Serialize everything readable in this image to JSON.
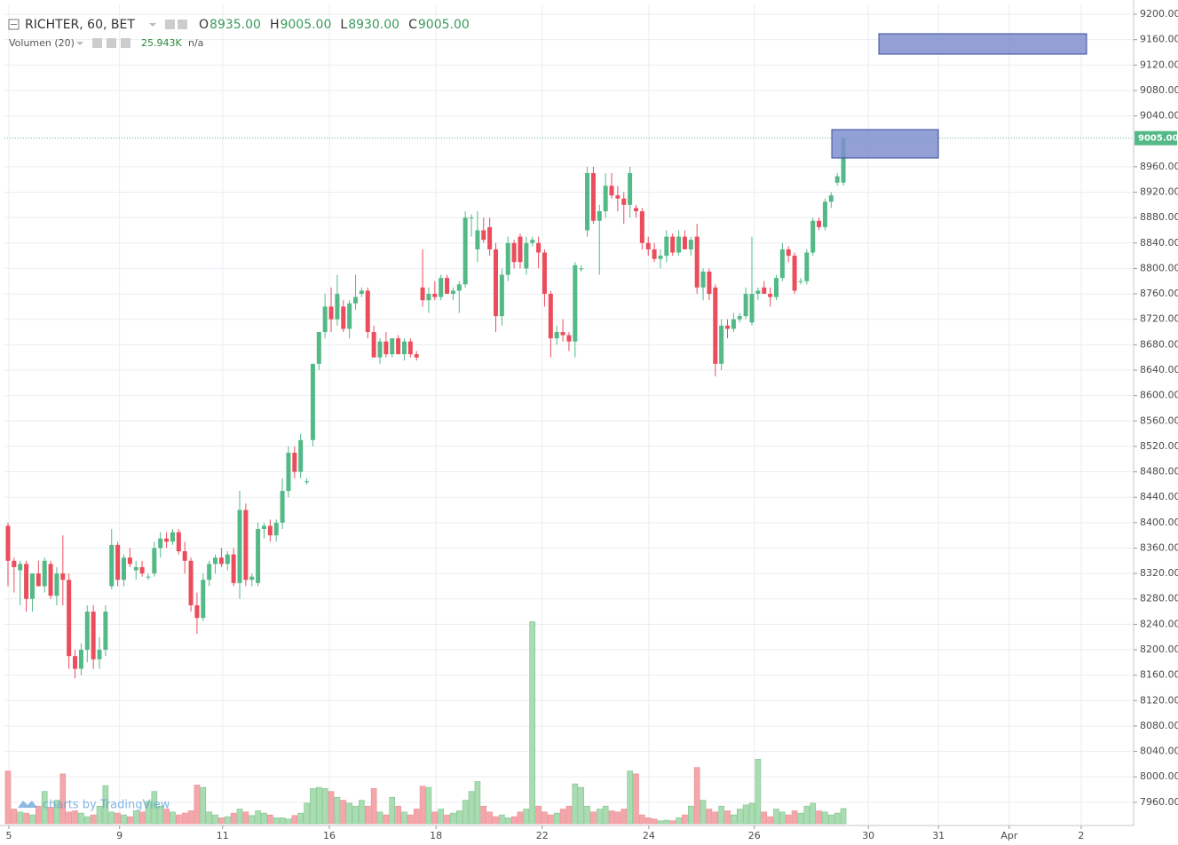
{
  "chart_data": {
    "type": "candlestick",
    "title": "RICHTER, 60, BET",
    "ohlc_labels": [
      {
        "name": "O",
        "value": "8935.00"
      },
      {
        "name": "H",
        "value": "9005.00"
      },
      {
        "name": "L",
        "value": "8930.00"
      },
      {
        "name": "C",
        "value": "9005.00"
      }
    ],
    "up_color": "#53b987",
    "down_color": "#eb4d5c",
    "open": [
      8395,
      8340,
      8325,
      8335,
      8280,
      8320,
      8300,
      8335,
      8285,
      8320,
      8310,
      8190,
      8170,
      8200,
      8260,
      8185,
      8200,
      8300,
      8365,
      8310,
      8345,
      8325,
      8330,
      8315,
      8320,
      8360,
      8375,
      8370,
      8385,
      8355,
      8340,
      8270,
      8250,
      8310,
      8335,
      8345,
      8335,
      8350,
      8305,
      8420,
      8310,
      8305,
      8390,
      8395,
      8380,
      8400,
      8450,
      8510,
      8480,
      8465,
      8530,
      8650,
      8700,
      8740,
      8720,
      8740,
      8705,
      8745,
      8760,
      8765,
      8700,
      8660,
      8685,
      8665,
      8690,
      8665,
      8685,
      8665,
      8770,
      8750,
      8760,
      8755,
      8785,
      8760,
      8765,
      8775,
      8880,
      8830,
      8860,
      8865,
      8830,
      8725,
      8790,
      8840,
      8850,
      8800,
      8840,
      8840,
      8825,
      8760,
      8690,
      8700,
      8695,
      8685,
      8800,
      8860,
      8950,
      8875,
      8890,
      8930,
      8915,
      8910,
      8900,
      8895,
      8890,
      8840,
      8830,
      8815,
      8820,
      8850,
      8825,
      8850,
      8830,
      8850,
      8770,
      8795,
      8770,
      8650,
      8710,
      8705,
      8720,
      8725,
      8715,
      8760,
      8770,
      8760,
      8755,
      8785,
      8830,
      8820,
      8780,
      8780,
      8825,
      8875,
      8865,
      8905,
      8935,
      8935
    ],
    "high": [
      8400,
      8345,
      8340,
      8340,
      8320,
      8340,
      8345,
      8340,
      8330,
      8380,
      8320,
      8200,
      8210,
      8270,
      8270,
      8220,
      8270,
      8390,
      8370,
      8350,
      8360,
      8340,
      8340,
      8320,
      8370,
      8385,
      8385,
      8390,
      8390,
      8370,
      8345,
      8290,
      8320,
      8340,
      8350,
      8360,
      8355,
      8360,
      8450,
      8430,
      8320,
      8400,
      8400,
      8405,
      8405,
      8470,
      8520,
      8520,
      8540,
      8470,
      8650,
      8700,
      8760,
      8770,
      8790,
      8750,
      8750,
      8790,
      8770,
      8770,
      8710,
      8690,
      8700,
      8690,
      8695,
      8690,
      8690,
      8670,
      8830,
      8770,
      8780,
      8790,
      8790,
      8770,
      8780,
      8890,
      8885,
      8890,
      8880,
      8880,
      8840,
      8800,
      8850,
      8845,
      8855,
      8850,
      8850,
      8850,
      8830,
      8765,
      8710,
      8720,
      8700,
      8810,
      8805,
      8960,
      8960,
      8900,
      8950,
      8950,
      8930,
      8920,
      8960,
      8900,
      8895,
      8850,
      8840,
      8830,
      8860,
      8855,
      8860,
      8860,
      8850,
      8870,
      8800,
      8800,
      8775,
      8720,
      8720,
      8730,
      8730,
      8770,
      8850,
      8770,
      8780,
      8770,
      8790,
      8840,
      8835,
      8825,
      8785,
      8830,
      8880,
      8880,
      8910,
      8920,
      8950,
      9005
    ],
    "low": [
      8300,
      8290,
      8270,
      8260,
      8260,
      8300,
      8290,
      8280,
      8270,
      8270,
      8170,
      8155,
      8160,
      8180,
      8170,
      8170,
      8190,
      8295,
      8300,
      8300,
      8330,
      8310,
      8315,
      8310,
      8315,
      8345,
      8360,
      8365,
      8350,
      8320,
      8260,
      8225,
      8245,
      8300,
      8320,
      8330,
      8325,
      8300,
      8280,
      8300,
      8300,
      8300,
      8375,
      8370,
      8370,
      8390,
      8440,
      8470,
      8470,
      8460,
      8520,
      8640,
      8690,
      8700,
      8710,
      8700,
      8690,
      8735,
      8755,
      8690,
      8660,
      8650,
      8660,
      8660,
      8665,
      8655,
      8660,
      8655,
      8740,
      8730,
      8750,
      8750,
      8760,
      8750,
      8730,
      8770,
      8850,
      8810,
      8840,
      8820,
      8700,
      8710,
      8780,
      8800,
      8800,
      8790,
      8835,
      8800,
      8740,
      8660,
      8680,
      8685,
      8670,
      8660,
      8795,
      8850,
      8870,
      8790,
      8880,
      8910,
      8890,
      8870,
      8880,
      8880,
      8830,
      8820,
      8810,
      8800,
      8810,
      8820,
      8820,
      8830,
      8820,
      8760,
      8750,
      8750,
      8630,
      8640,
      8690,
      8700,
      8715,
      8720,
      8710,
      8750,
      8760,
      8740,
      8750,
      8780,
      8810,
      8760,
      8775,
      8775,
      8820,
      8860,
      8860,
      8895,
      8930,
      8930
    ],
    "close": [
      8340,
      8330,
      8335,
      8280,
      8320,
      8300,
      8340,
      8285,
      8320,
      8310,
      8190,
      8170,
      8200,
      8260,
      8185,
      8200,
      8260,
      8365,
      8310,
      8345,
      8335,
      8330,
      8320,
      8315,
      8360,
      8375,
      8370,
      8385,
      8355,
      8340,
      8270,
      8250,
      8310,
      8335,
      8345,
      8335,
      8350,
      8305,
      8420,
      8310,
      8315,
      8390,
      8395,
      8380,
      8400,
      8450,
      8510,
      8480,
      8530,
      8465,
      8650,
      8700,
      8740,
      8720,
      8760,
      8705,
      8745,
      8755,
      8765,
      8700,
      8660,
      8685,
      8665,
      8690,
      8665,
      8685,
      8665,
      8660,
      8750,
      8760,
      8755,
      8785,
      8760,
      8765,
      8775,
      8880,
      8880,
      8860,
      8845,
      8830,
      8725,
      8790,
      8840,
      8810,
      8810,
      8840,
      8845,
      8825,
      8760,
      8690,
      8700,
      8695,
      8685,
      8805,
      8800,
      8950,
      8875,
      8890,
      8930,
      8915,
      8910,
      8900,
      8950,
      8890,
      8840,
      8830,
      8815,
      8820,
      8850,
      8825,
      8850,
      8830,
      8845,
      8770,
      8795,
      8760,
      8650,
      8710,
      8705,
      8720,
      8725,
      8760,
      8760,
      8765,
      8760,
      8755,
      8785,
      8830,
      8820,
      8765,
      8780,
      8825,
      8875,
      8865,
      8905,
      8915,
      8945,
      9005
    ],
    "volume": {
      "name": "Volumen (20)",
      "last_label": "25.943K",
      "status": "n/a",
      "values": [
        90,
        25,
        20,
        18,
        15,
        30,
        55,
        28,
        40,
        85,
        20,
        22,
        18,
        12,
        15,
        30,
        65,
        20,
        18,
        15,
        12,
        22,
        20,
        38,
        55,
        30,
        25,
        20,
        15,
        18,
        22,
        66,
        62,
        20,
        15,
        10,
        12,
        18,
        25,
        20,
        14,
        22,
        18,
        15,
        10,
        10,
        8,
        14,
        18,
        35,
        60,
        62,
        60,
        55,
        45,
        40,
        35,
        30,
        40,
        30,
        60,
        20,
        15,
        45,
        30,
        20,
        15,
        25,
        64,
        62,
        20,
        25,
        15,
        18,
        22,
        40,
        55,
        72,
        30,
        20,
        12,
        15,
        10,
        12,
        20,
        25,
        345,
        30,
        20,
        15,
        18,
        25,
        30,
        68,
        62,
        30,
        20,
        25,
        30,
        22,
        20,
        25,
        90,
        85,
        15,
        10,
        8,
        5,
        6,
        5,
        10,
        15,
        30,
        96,
        40,
        25,
        20,
        30,
        22,
        15,
        25,
        32,
        35,
        110,
        20,
        12,
        25,
        20,
        15,
        22,
        18,
        30,
        35,
        22,
        20,
        15,
        18,
        25.943
      ]
    },
    "last_price": {
      "value": 9005,
      "label": "9005.00"
    },
    "xlim": [
      -0.58,
      184.6
    ],
    "xticks": [
      {
        "value": 0.15,
        "label": "5"
      },
      {
        "value": 18.3,
        "label": "9"
      },
      {
        "value": 35.2,
        "label": "11"
      },
      {
        "value": 52.7,
        "label": "16"
      },
      {
        "value": 70.2,
        "label": "18"
      },
      {
        "value": 87.6,
        "label": "22"
      },
      {
        "value": 105.1,
        "label": "24"
      },
      {
        "value": 122.4,
        "label": "26"
      },
      {
        "value": 141.1,
        "label": "30"
      },
      {
        "value": 152.6,
        "label": "31"
      },
      {
        "value": 164.2,
        "label": "Apr"
      },
      {
        "value": 176.0,
        "label": "2"
      }
    ],
    "ylim": [
      7926.3,
      9215.4
    ],
    "yticks": [
      {
        "value": 9200,
        "label": "9200.00"
      },
      {
        "value": 9160,
        "label": "9160.00"
      },
      {
        "value": 9120,
        "label": "9120.00"
      },
      {
        "value": 9080,
        "label": "9080.00"
      },
      {
        "value": 9040,
        "label": "9040.00"
      },
      {
        "value": 8960,
        "label": "8960.00"
      },
      {
        "value": 8920,
        "label": "8920.00"
      },
      {
        "value": 8880,
        "label": "8880.00"
      },
      {
        "value": 8840,
        "label": "8840.00"
      },
      {
        "value": 8800,
        "label": "8800.00"
      },
      {
        "value": 8760,
        "label": "8760.00"
      },
      {
        "value": 8720,
        "label": "8720.00"
      },
      {
        "value": 8680,
        "label": "8680.00"
      },
      {
        "value": 8640,
        "label": "8640.00"
      },
      {
        "value": 8600,
        "label": "8600.00"
      },
      {
        "value": 8560,
        "label": "8560.00"
      },
      {
        "value": 8520,
        "label": "8520.00"
      },
      {
        "value": 8480,
        "label": "8480.00"
      },
      {
        "value": 8440,
        "label": "8440.00"
      },
      {
        "value": 8400,
        "label": "8400.00"
      },
      {
        "value": 8360,
        "label": "8360.00"
      },
      {
        "value": 8320,
        "label": "8320.00"
      },
      {
        "value": 8280,
        "label": "8280.00"
      },
      {
        "value": 8240,
        "label": "8240.00"
      },
      {
        "value": 8200,
        "label": "8200.00"
      },
      {
        "value": 8160,
        "label": "8160.00"
      },
      {
        "value": 8120,
        "label": "8120.00"
      },
      {
        "value": 8080,
        "label": "8080.00"
      },
      {
        "value": 8040,
        "label": "8040.00"
      },
      {
        "value": 8000,
        "label": "8000.00"
      },
      {
        "value": 7960,
        "label": "7960.00"
      }
    ],
    "grid": true,
    "watermark": "charts by TradingView"
  }
}
